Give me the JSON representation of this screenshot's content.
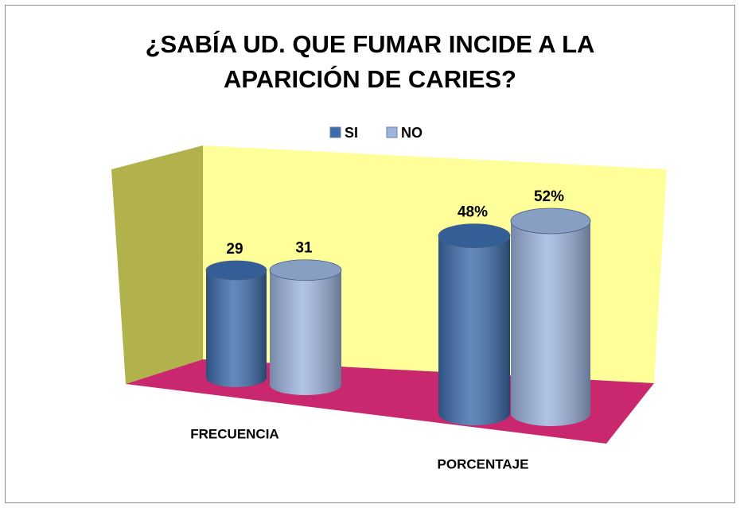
{
  "chart_data": {
    "type": "cylinder",
    "title": "¿SABÍA UD. QUE FUMAR INCIDE A LA APARICIÓN DE CARIES?",
    "categories": [
      "FRECUENCIA",
      "PORCENTAJE"
    ],
    "series": [
      {
        "name": "SI",
        "color": "#3c6bab",
        "values": [
          29,
          48
        ],
        "value_labels": [
          "29",
          "48%"
        ]
      },
      {
        "name": "NO",
        "color": "#9db4df",
        "values": [
          31,
          52
        ],
        "value_labels": [
          "31",
          "52%"
        ]
      }
    ]
  }
}
